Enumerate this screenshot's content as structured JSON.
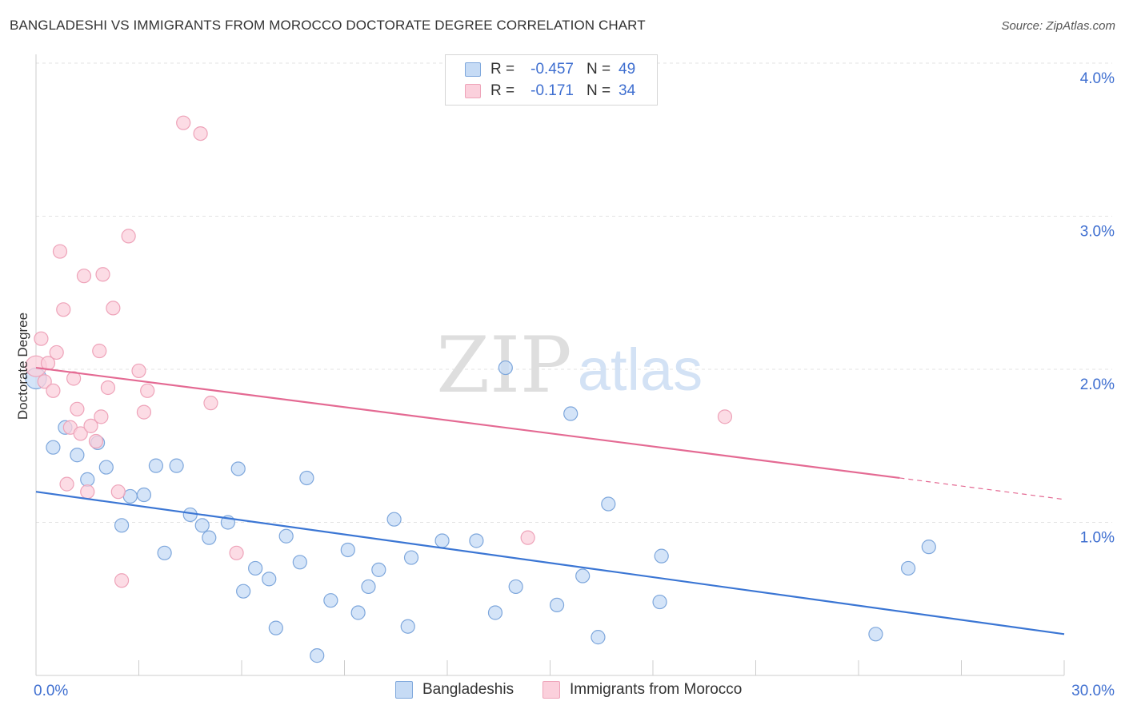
{
  "title": "BANGLADESHI VS IMMIGRANTS FROM MOROCCO DOCTORATE DEGREE CORRELATION CHART",
  "source": "Source: ZipAtlas.com",
  "watermark": {
    "zip": "ZIP",
    "atlas": "atlas"
  },
  "colors": {
    "blue_fill": "#c6dbf5",
    "blue_stroke": "#7ea7dc",
    "blue_line": "#3b76d4",
    "pink_fill": "#fbd0dc",
    "pink_stroke": "#eea3b9",
    "pink_line": "#e46a93",
    "accent_text": "#3f6fd0"
  },
  "stats": [
    {
      "series": "Bangladeshis",
      "r_label": "R =",
      "r": "-0.457",
      "n_label": "N =",
      "n": "49"
    },
    {
      "series": "Immigrants from Morocco",
      "r_label": "R =",
      "r": "-0.171",
      "n_label": "N =",
      "n": "34"
    }
  ],
  "legend": [
    "Bangladeshis",
    "Immigrants from Morocco"
  ],
  "chart_data": {
    "type": "scatter",
    "title": "BANGLADESHI VS IMMIGRANTS FROM MOROCCO DOCTORATE DEGREE CORRELATION CHART",
    "xlabel": "",
    "ylabel": "Doctorate Degree",
    "xlim": [
      0,
      30
    ],
    "ylim": [
      0,
      4.0
    ],
    "x_tick_labels": [
      "0.0%",
      "30.0%"
    ],
    "y_ticks": [
      1.0,
      2.0,
      3.0,
      4.0
    ],
    "y_tick_labels": [
      "1.0%",
      "2.0%",
      "3.0%",
      "4.0%"
    ],
    "grid": true,
    "series": [
      {
        "name": "Bangladeshis",
        "points": [
          [
            0.0,
            1.94
          ],
          [
            0.5,
            1.49
          ],
          [
            0.85,
            1.62
          ],
          [
            1.2,
            1.44
          ],
          [
            1.5,
            1.28
          ],
          [
            1.8,
            1.52
          ],
          [
            2.05,
            1.36
          ],
          [
            2.5,
            0.98
          ],
          [
            2.75,
            1.17
          ],
          [
            3.15,
            1.18
          ],
          [
            3.5,
            1.37
          ],
          [
            3.75,
            0.8
          ],
          [
            4.1,
            1.37
          ],
          [
            4.5,
            1.05
          ],
          [
            4.85,
            0.98
          ],
          [
            5.05,
            0.9
          ],
          [
            5.6,
            1.0
          ],
          [
            5.9,
            1.35
          ],
          [
            6.05,
            0.55
          ],
          [
            6.4,
            0.7
          ],
          [
            6.8,
            0.63
          ],
          [
            7.0,
            0.31
          ],
          [
            7.3,
            0.91
          ],
          [
            7.7,
            0.74
          ],
          [
            7.9,
            1.29
          ],
          [
            8.2,
            0.13
          ],
          [
            8.6,
            0.49
          ],
          [
            9.1,
            0.82
          ],
          [
            9.4,
            0.41
          ],
          [
            9.7,
            0.58
          ],
          [
            10.0,
            0.69
          ],
          [
            10.45,
            1.02
          ],
          [
            10.85,
            0.32
          ],
          [
            10.95,
            0.77
          ],
          [
            11.85,
            0.88
          ],
          [
            12.85,
            0.88
          ],
          [
            13.4,
            0.41
          ],
          [
            13.7,
            2.01
          ],
          [
            14.0,
            0.58
          ],
          [
            15.2,
            0.46
          ],
          [
            15.6,
            1.71
          ],
          [
            15.95,
            0.65
          ],
          [
            16.4,
            0.25
          ],
          [
            16.7,
            1.12
          ],
          [
            18.2,
            0.48
          ],
          [
            18.25,
            0.78
          ],
          [
            24.5,
            0.27
          ],
          [
            25.45,
            0.7
          ],
          [
            26.05,
            0.84
          ]
        ],
        "trend": {
          "x": [
            0,
            30
          ],
          "y": [
            1.2,
            0.27
          ]
        }
      },
      {
        "name": "Immigrants from Morocco",
        "points": [
          [
            0.0,
            2.02
          ],
          [
            0.15,
            2.2
          ],
          [
            0.25,
            1.92
          ],
          [
            0.35,
            2.04
          ],
          [
            0.5,
            1.86
          ],
          [
            0.6,
            2.11
          ],
          [
            0.7,
            2.77
          ],
          [
            0.8,
            2.39
          ],
          [
            0.9,
            1.25
          ],
          [
            1.0,
            1.62
          ],
          [
            1.1,
            1.94
          ],
          [
            1.2,
            1.74
          ],
          [
            1.3,
            1.58
          ],
          [
            1.4,
            2.61
          ],
          [
            1.5,
            1.2
          ],
          [
            1.6,
            1.63
          ],
          [
            1.75,
            1.53
          ],
          [
            1.85,
            2.12
          ],
          [
            1.9,
            1.69
          ],
          [
            1.95,
            2.62
          ],
          [
            2.1,
            1.88
          ],
          [
            2.25,
            2.4
          ],
          [
            2.4,
            1.2
          ],
          [
            2.5,
            0.62
          ],
          [
            2.7,
            2.87
          ],
          [
            3.0,
            1.99
          ],
          [
            3.15,
            1.72
          ],
          [
            3.25,
            1.86
          ],
          [
            4.3,
            3.61
          ],
          [
            4.8,
            3.54
          ],
          [
            5.1,
            1.78
          ],
          [
            5.85,
            0.8
          ],
          [
            14.35,
            0.9
          ],
          [
            20.1,
            1.69
          ]
        ],
        "trend": {
          "x": [
            0,
            25.2
          ],
          "y": [
            2.01,
            1.29
          ]
        },
        "trend_dashed": {
          "x": [
            25.2,
            30
          ],
          "y": [
            1.29,
            1.15
          ]
        }
      }
    ]
  }
}
